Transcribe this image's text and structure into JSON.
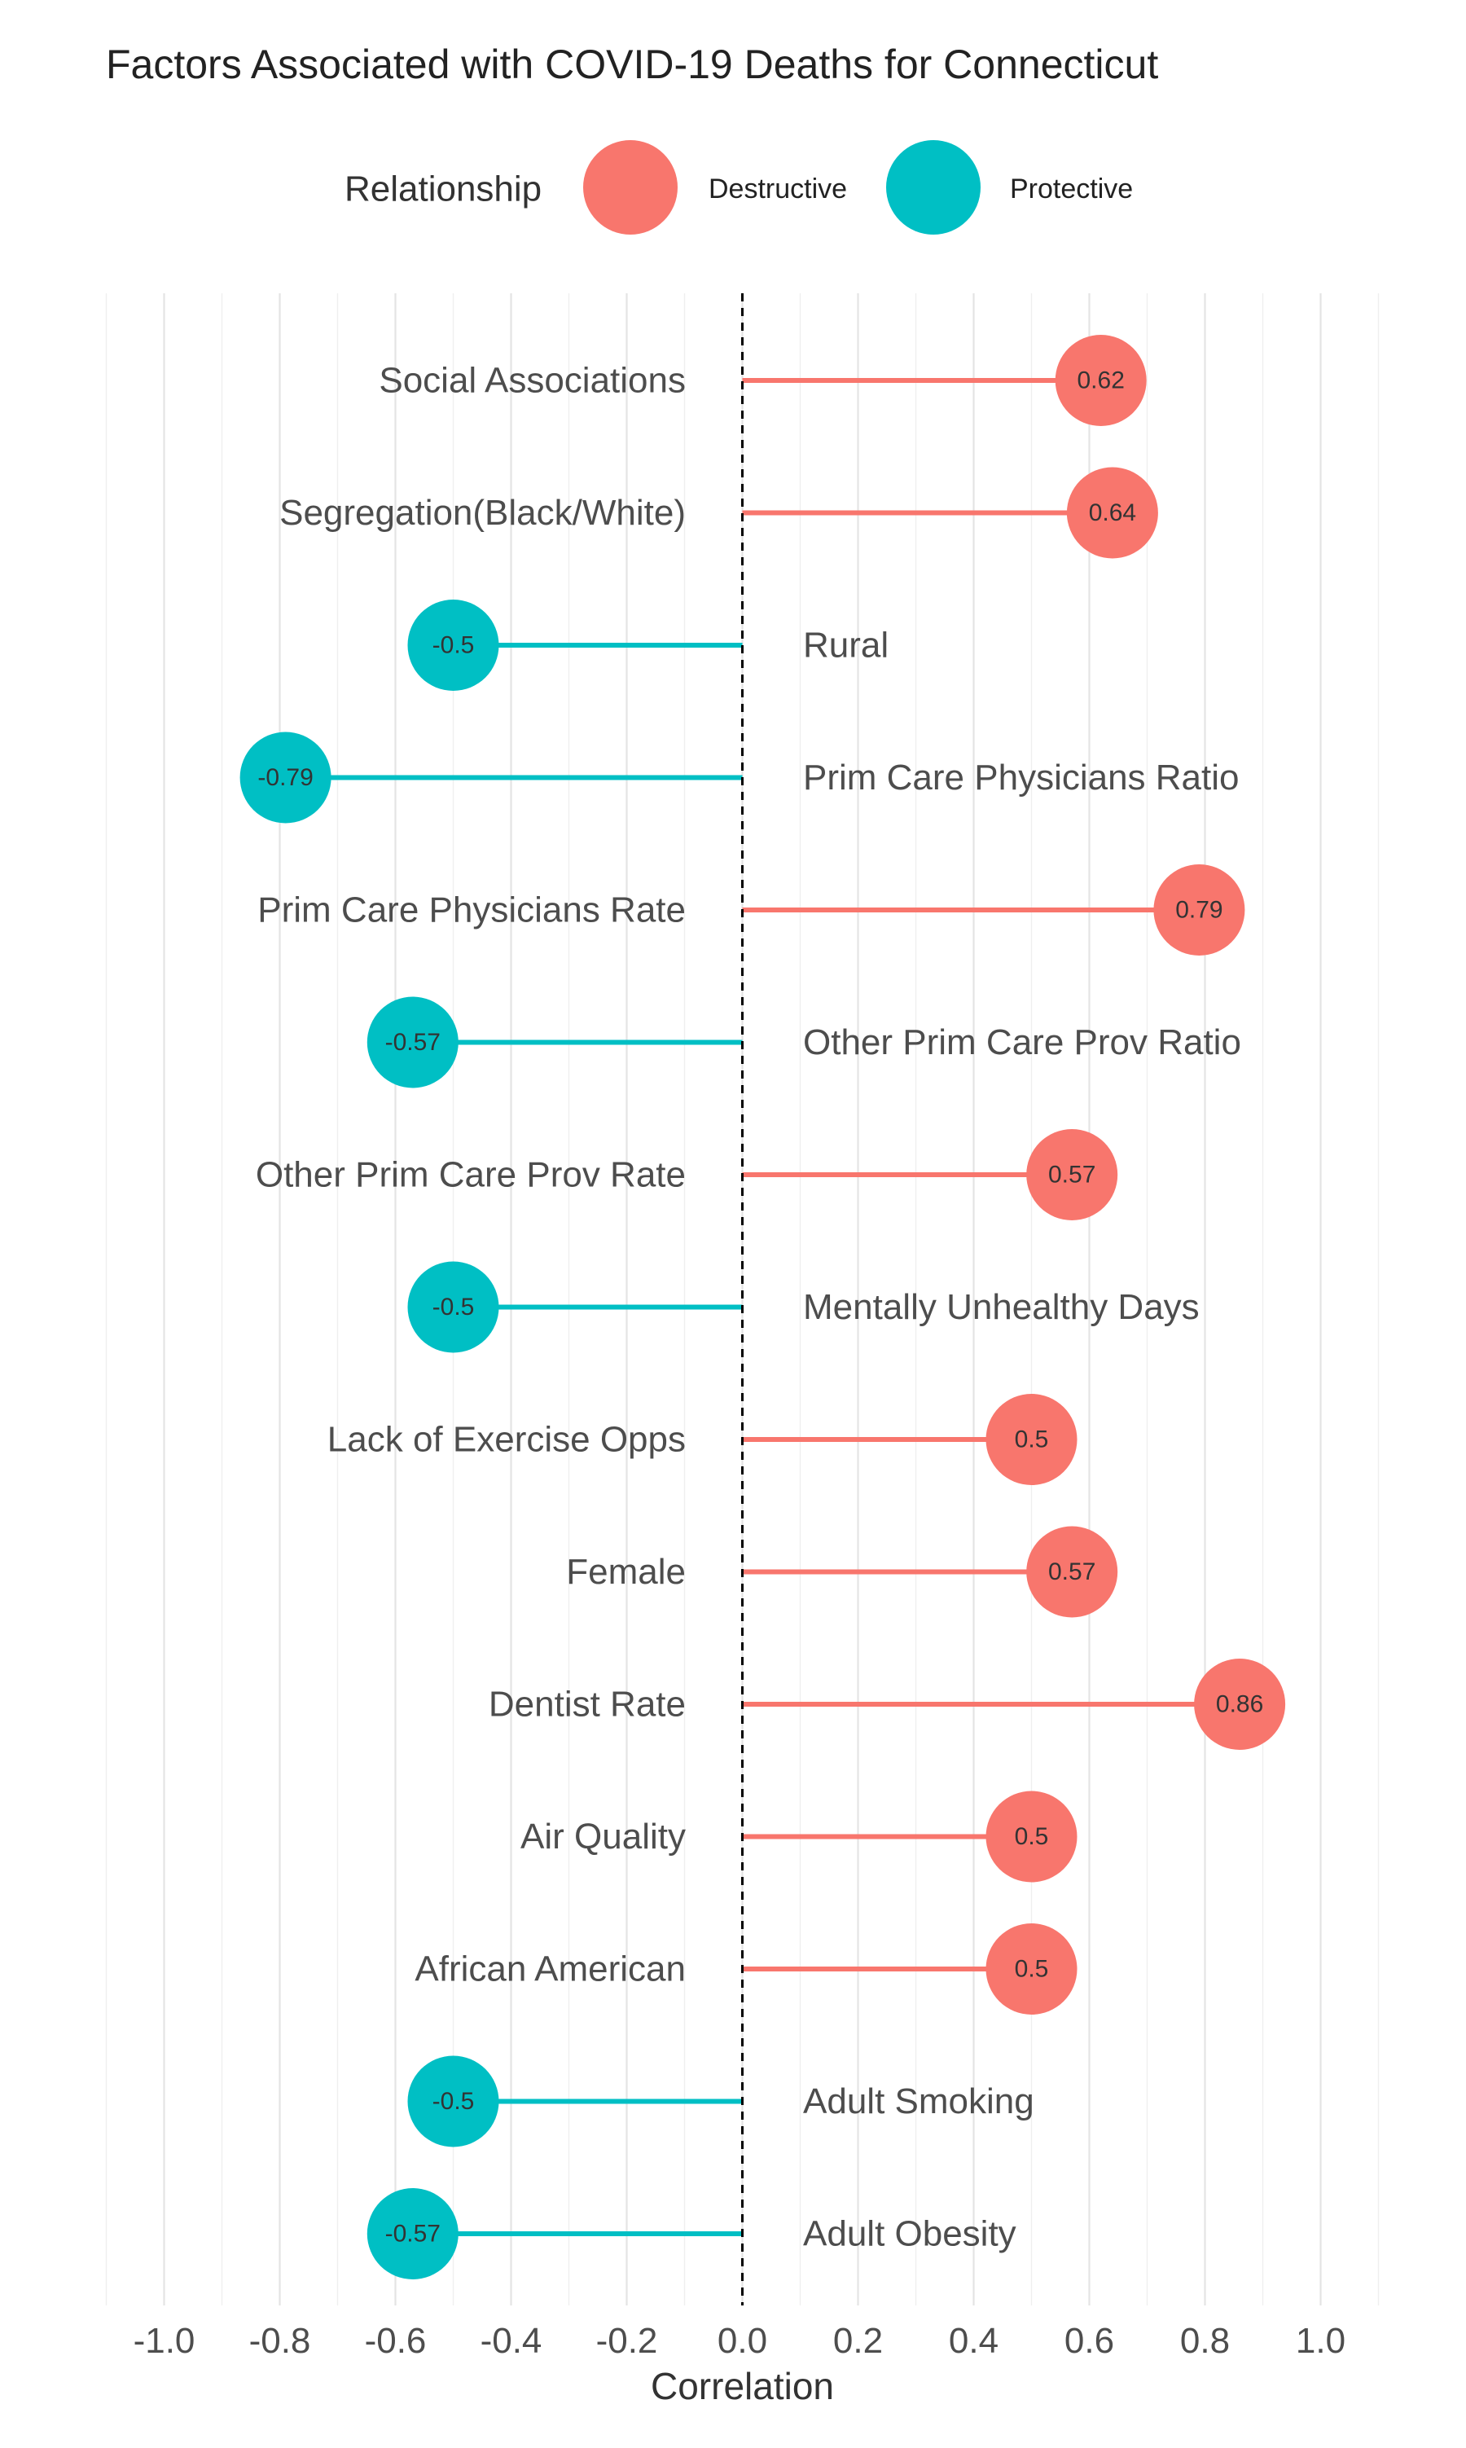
{
  "chart_data": {
    "type": "lollipop",
    "title": "Factors Associated with COVID-19 Deaths for Connecticut",
    "xlabel": "Correlation",
    "ylabel": "",
    "xlim": [
      -1.1,
      1.1
    ],
    "x_ticks": [
      "-1.0",
      "-0.8",
      "-0.6",
      "-0.4",
      "-0.2",
      "0.0",
      "0.2",
      "0.4",
      "0.6",
      "0.8",
      "1.0"
    ],
    "grid": true,
    "legend": {
      "title": "Relationship",
      "position": "top",
      "entries": [
        {
          "label": "Destructive",
          "color": "#F8766D"
        },
        {
          "label": "Protective",
          "color": "#00BFC4"
        }
      ]
    },
    "colors": {
      "Destructive": "#F8766D",
      "Protective": "#00BFC4"
    },
    "categories": [
      "Social Associations",
      "Segregation(Black/White)",
      "Rural",
      "Prim Care Physicians Ratio",
      "Prim Care Physicians Rate",
      "Other Prim Care Prov Ratio",
      "Other Prim Care Prov Rate",
      "Mentally Unhealthy Days",
      "Lack of Exercise Opps",
      "Female",
      "Dentist Rate",
      "Air Quality",
      "African American",
      "Adult Smoking",
      "Adult Obesity"
    ],
    "values": [
      0.62,
      0.64,
      -0.5,
      -0.79,
      0.79,
      -0.57,
      0.57,
      -0.5,
      0.5,
      0.57,
      0.86,
      0.5,
      0.5,
      -0.5,
      -0.57
    ],
    "value_labels": [
      "0.62",
      "0.64",
      "-0.5",
      "-0.79",
      "0.79",
      "-0.57",
      "0.57",
      "-0.5",
      "0.5",
      "0.57",
      "0.86",
      "0.5",
      "0.5",
      "-0.5",
      "-0.57"
    ],
    "relationship": [
      "Destructive",
      "Destructive",
      "Protective",
      "Protective",
      "Destructive",
      "Protective",
      "Destructive",
      "Protective",
      "Destructive",
      "Destructive",
      "Destructive",
      "Destructive",
      "Destructive",
      "Protective",
      "Protective"
    ],
    "reference_line": {
      "x": 0,
      "style": "dashed"
    }
  }
}
